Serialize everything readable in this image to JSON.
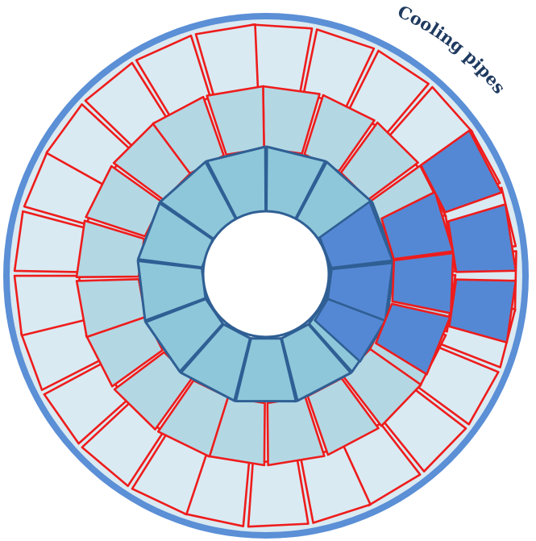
{
  "diagram": {
    "label": "Cooling pipes",
    "colors": {
      "background": "#ffffff",
      "outer_ring_border": "#5b8fd6",
      "outer_tile": "#daeaf2",
      "middle_tile": "#b3d8e4",
      "inner_tile": "#8ec7da",
      "highlight_tile": "#5588d4",
      "tile_outline_red": "#ee1c1c",
      "tile_outline_blue": "#2f5f94",
      "label": "#1f3a5f"
    },
    "rings": [
      {
        "name": "outer",
        "tiles": 25,
        "fill": "outer"
      },
      {
        "name": "middle",
        "tiles": 20,
        "fill": "middle"
      },
      {
        "name": "inner",
        "tiles": 13,
        "fill": "inner"
      }
    ],
    "highlighted_tiles": 9
  }
}
